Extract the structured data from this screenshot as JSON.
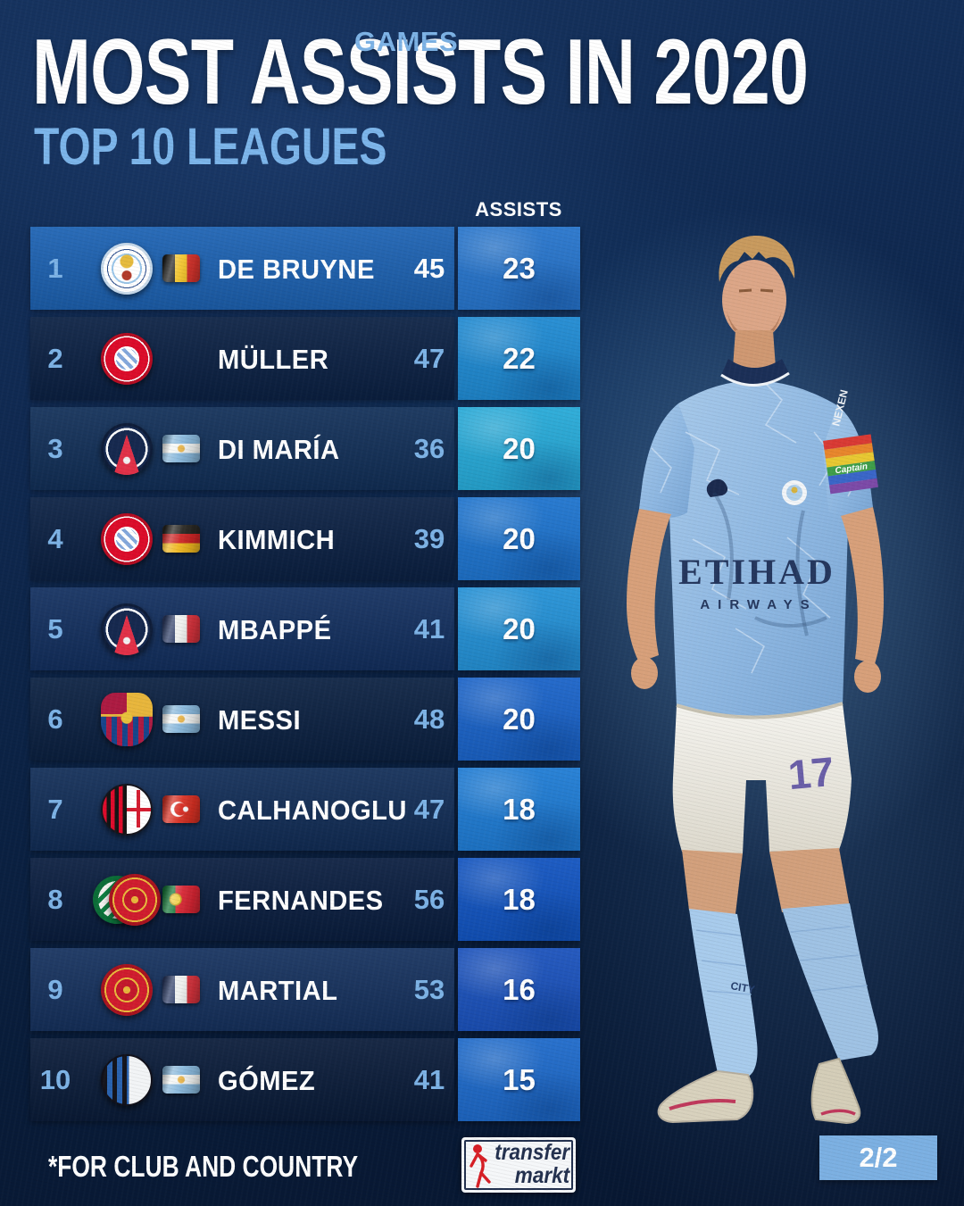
{
  "header": {
    "title": "MOST ASSISTS IN 2020",
    "subtitle": "TOP 10 LEAGUES"
  },
  "columns": {
    "games": "GAMES",
    "assists": "ASSISTS"
  },
  "table": {
    "rows": [
      {
        "rank": "1",
        "player": "DE BRUYNE",
        "clubs": [
          "manchester-city"
        ],
        "flag": "belgium",
        "games": "45",
        "assists": "23",
        "highlight": true,
        "row_color": "#1d63b4",
        "assist_color": "#2775cc"
      },
      {
        "rank": "2",
        "player": "MÜLLER",
        "clubs": [
          "bayern-munich"
        ],
        "flag": null,
        "games": "47",
        "assists": "22",
        "highlight": false,
        "row_color": "#0b2144",
        "assist_color": "#1f8ad2"
      },
      {
        "rank": "3",
        "player": "DI MARÍA",
        "clubs": [
          "psg"
        ],
        "flag": "argentina",
        "games": "36",
        "assists": "20",
        "highlight": false,
        "row_color": "#123059",
        "assist_color": "#27aad8"
      },
      {
        "rank": "4",
        "player": "KIMMICH",
        "clubs": [
          "bayern-munich"
        ],
        "flag": "germany",
        "games": "39",
        "assists": "20",
        "highlight": false,
        "row_color": "#0b2144",
        "assist_color": "#1e74ce"
      },
      {
        "rank": "5",
        "player": "MBAPPÉ",
        "clubs": [
          "psg"
        ],
        "flag": "france",
        "games": "41",
        "assists": "20",
        "highlight": false,
        "row_color": "#133060",
        "assist_color": "#2491d6"
      },
      {
        "rank": "6",
        "player": "MESSI",
        "clubs": [
          "barcelona"
        ],
        "flag": "argentina",
        "games": "48",
        "assists": "20",
        "highlight": false,
        "row_color": "#0b2142",
        "assist_color": "#1a63c8"
      },
      {
        "rank": "7",
        "player": "CALHANOGLU",
        "clubs": [
          "ac-milan"
        ],
        "flag": "turkey",
        "games": "47",
        "assists": "18",
        "highlight": false,
        "row_color": "#122e58",
        "assist_color": "#1f7cd4"
      },
      {
        "rank": "8",
        "player": "FERNANDES",
        "clubs": [
          "sporting-cp",
          "manchester-united"
        ],
        "flag": "portugal",
        "games": "56",
        "assists": "18",
        "highlight": false,
        "row_color": "#0a1e40",
        "assist_color": "#1254c0"
      },
      {
        "rank": "9",
        "player": "MARTIAL",
        "clubs": [
          "manchester-united"
        ],
        "flag": "france",
        "games": "53",
        "assists": "16",
        "highlight": false,
        "row_color": "#16325f",
        "assist_color": "#1b52bc"
      },
      {
        "rank": "10",
        "player": "GÓMEZ",
        "clubs": [
          "atalanta"
        ],
        "flag": "argentina",
        "games": "41",
        "assists": "15",
        "highlight": false,
        "row_color": "#0a1c3a",
        "assist_color": "#1e6aca"
      }
    ]
  },
  "player_photo": {
    "shirt_sponsor_line1": "ETIHAD",
    "shirt_sponsor_line2": "AIRWAYS",
    "shorts_number": "17",
    "armband_text": "Captain",
    "sleeve_sponsor": "NEXEN",
    "sock_text": "CITY"
  },
  "footer": {
    "note": "*FOR CLUB AND COUNTRY",
    "brand_top": "transfer",
    "brand_bottom": "markt",
    "page": "2/2"
  },
  "colors": {
    "accent_light_blue": "#7cb5ea",
    "value_light_blue": "#7db3e6",
    "highlight_row": "#1d63b4",
    "page_badge": "#7cb0e2",
    "background_navy": "#0b2244"
  }
}
